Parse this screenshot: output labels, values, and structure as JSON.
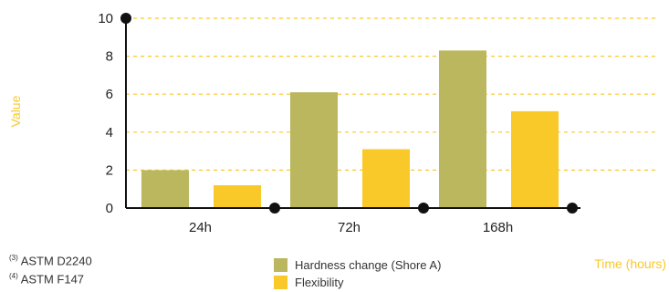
{
  "chart_data": {
    "type": "bar",
    "title": "",
    "xlabel": "Time (hours)",
    "ylabel": "Value",
    "categories": [
      "24h",
      "72h",
      "168h"
    ],
    "series": [
      {
        "name": "Hardness change (Shore A)",
        "color": "#bab75f",
        "values": [
          2,
          6.1,
          8.3
        ]
      },
      {
        "name": "Flexibility",
        "color": "#f9c92a",
        "values": [
          1.2,
          3.1,
          5.1
        ]
      }
    ],
    "ylim": [
      0,
      10
    ],
    "yticks": [
      0,
      2,
      4,
      6,
      8,
      10
    ],
    "grid": true,
    "grid_color": "#f9c92a",
    "axis_color": "#111111",
    "label_color": "#f9c92a",
    "legend_position": "bottom-center"
  },
  "footnotes": [
    {
      "marker": "(3)",
      "text": "ASTM D2240"
    },
    {
      "marker": "(4)",
      "text": "ASTM F147"
    }
  ]
}
